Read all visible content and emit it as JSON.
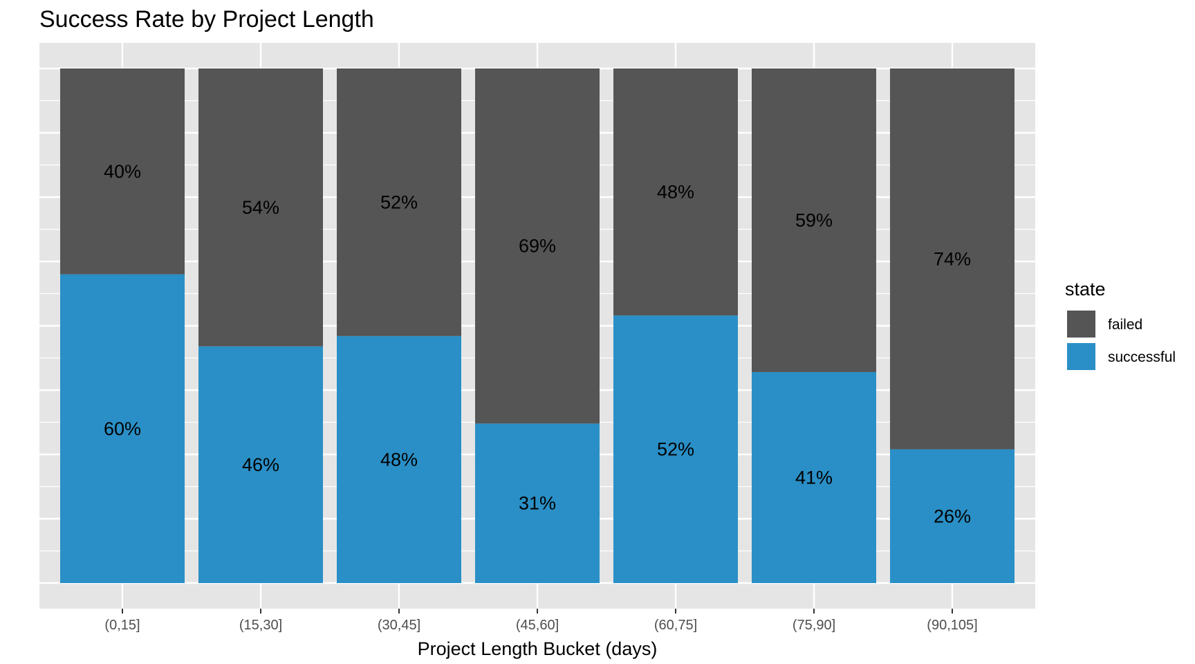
{
  "chart_data": {
    "type": "bar",
    "stacked": true,
    "title": "Success Rate by Project Length",
    "xlabel": "Project Length Bucket (days)",
    "ylabel": "",
    "ylim": [
      0,
      1
    ],
    "grid": true,
    "legend_position": "right",
    "legend_title": "state",
    "categories": [
      "(0,15]",
      "(15,30]",
      "(30,45]",
      "(45,60]",
      "(60,75]",
      "(75,90]",
      "(90,105]"
    ],
    "series": [
      {
        "name": "failed",
        "color": "#555555",
        "values": [
          0.4,
          0.54,
          0.52,
          0.69,
          0.48,
          0.59,
          0.74
        ],
        "labels": [
          "40%",
          "54%",
          "52%",
          "69%",
          "48%",
          "59%",
          "74%"
        ]
      },
      {
        "name": "successful",
        "color": "#2a8fc6",
        "values": [
          0.6,
          0.46,
          0.48,
          0.31,
          0.52,
          0.41,
          0.26
        ],
        "labels": [
          "60%",
          "46%",
          "48%",
          "31%",
          "52%",
          "41%",
          "26%"
        ]
      }
    ],
    "panel_background": "#e5e5e5",
    "gridline_color": "#ffffff"
  }
}
